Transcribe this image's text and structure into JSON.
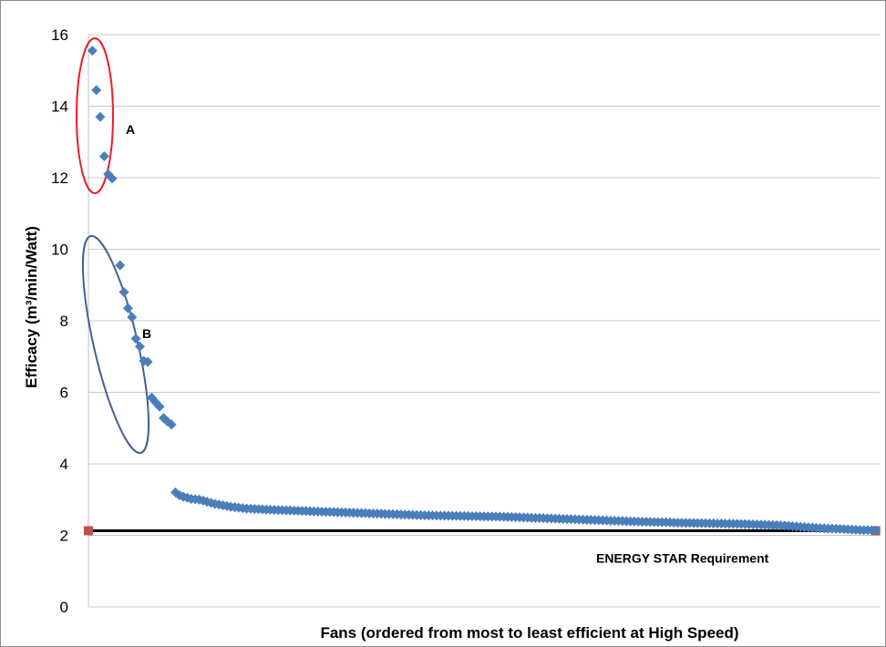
{
  "chart_data": {
    "type": "scatter",
    "xlabel": "Fans (ordered from most to least efficient at High Speed)",
    "ylabel": "Efficacy (m³/min/Watt)",
    "ylim": [
      0,
      16
    ],
    "yticks": [
      0,
      2,
      4,
      6,
      8,
      10,
      12,
      14,
      16
    ],
    "xlim": [
      0,
      200
    ],
    "grid": true,
    "marker_color": "#4a7ebb",
    "threshold_marker_color": "#c0504d",
    "series": [
      {
        "x": [
          1,
          2,
          3,
          4,
          5,
          6,
          8,
          9,
          10,
          11,
          12,
          13,
          14,
          15,
          16,
          17,
          18,
          19,
          20,
          21,
          22,
          23,
          24,
          25,
          26,
          28,
          32,
          36,
          40,
          45,
          50,
          55,
          60,
          65,
          70,
          75,
          80,
          85,
          90,
          95,
          100,
          105,
          110,
          115,
          120,
          125,
          130,
          135,
          140,
          145,
          150,
          155,
          160,
          165,
          170,
          175,
          180,
          185,
          190,
          195,
          199
        ],
        "y": [
          15.55,
          14.45,
          13.7,
          12.6,
          12.1,
          11.98,
          9.55,
          8.8,
          8.35,
          8.1,
          7.5,
          7.28,
          6.88,
          6.85,
          5.85,
          5.72,
          5.6,
          5.28,
          5.18,
          5.1,
          3.2,
          3.12,
          3.08,
          3.05,
          3.02,
          3.0,
          2.88,
          2.8,
          2.75,
          2.72,
          2.7,
          2.68,
          2.66,
          2.64,
          2.62,
          2.6,
          2.58,
          2.56,
          2.55,
          2.54,
          2.53,
          2.52,
          2.5,
          2.48,
          2.46,
          2.44,
          2.42,
          2.4,
          2.38,
          2.37,
          2.35,
          2.34,
          2.33,
          2.32,
          2.3,
          2.28,
          2.24,
          2.2,
          2.18,
          2.15,
          2.14
        ]
      }
    ],
    "threshold": {
      "value": 2.13,
      "label": "ENERGY STAR Requirement",
      "x_range": [
        0,
        199
      ]
    },
    "groups": [
      {
        "label": "A",
        "color": "#ee1c24"
      },
      {
        "label": "B",
        "color": "#3e6293"
      }
    ]
  }
}
